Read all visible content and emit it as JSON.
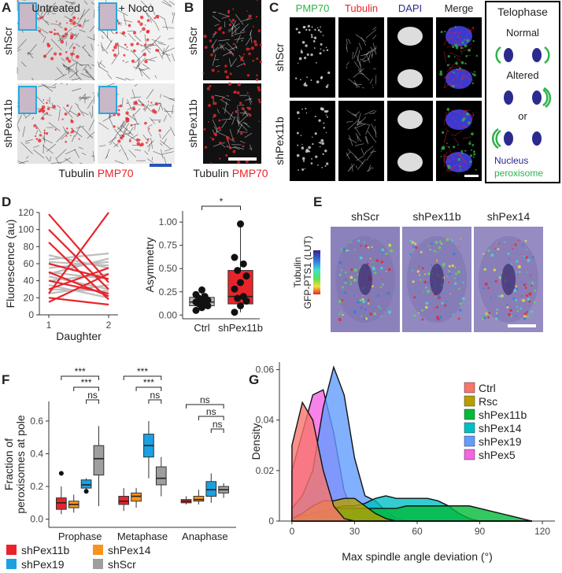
{
  "panels": {
    "A": {
      "letter": "A",
      "columns": [
        "Untreated",
        "+ Noco"
      ],
      "rows": [
        "shScr",
        "shPex11b"
      ],
      "caption": [
        "Tubulin",
        "PMP70"
      ]
    },
    "B": {
      "letter": "B",
      "rows": [
        "shScr",
        "shPex11b"
      ],
      "caption": [
        "Tubulin",
        "PMP70"
      ]
    },
    "C": {
      "letter": "C",
      "columns": [
        "PMP70",
        "Tubulin",
        "DAPI",
        "Merge"
      ],
      "rows": [
        "shScr",
        "shPex11b"
      ]
    },
    "telophase": {
      "title": "Telophase",
      "labels": [
        "Normal",
        "Altered",
        "or"
      ],
      "legend": [
        "Nucleus",
        "peroxisome"
      ]
    },
    "D": {
      "letter": "D"
    },
    "E": {
      "letter": "E",
      "columns": [
        "shScr",
        "shPex11b",
        "shPex14"
      ],
      "side_label": [
        "Tubulin",
        "GFP-PTS1 (LUT)"
      ]
    },
    "F": {
      "letter": "F"
    },
    "G": {
      "letter": "G"
    }
  },
  "chart_data": [
    {
      "type": "line",
      "ylabel": "Fluorescence (au)",
      "xlabel": "Daughter",
      "categories": [
        "1",
        "2"
      ],
      "ylim": [
        0,
        120
      ],
      "yticks": [
        0,
        20,
        40,
        60,
        80,
        100,
        120
      ],
      "series": [
        {
          "color": "#bdbdbd",
          "values": [
            70,
            55
          ]
        },
        {
          "color": "#bdbdbd",
          "values": [
            65,
            72
          ]
        },
        {
          "color": "#bdbdbd",
          "values": [
            55,
            62
          ]
        },
        {
          "color": "#bdbdbd",
          "values": [
            50,
            42
          ]
        },
        {
          "color": "#bdbdbd",
          "values": [
            45,
            30
          ]
        },
        {
          "color": "#bdbdbd",
          "values": [
            40,
            48
          ]
        },
        {
          "color": "#bdbdbd",
          "values": [
            35,
            20
          ]
        },
        {
          "color": "#bdbdbd",
          "values": [
            30,
            28
          ]
        },
        {
          "color": "#bdbdbd",
          "values": [
            62,
            58
          ]
        },
        {
          "color": "#bdbdbd",
          "values": [
            48,
            66
          ]
        },
        {
          "color": "#bdbdbd",
          "values": [
            25,
            35
          ]
        },
        {
          "color": "#e8242b",
          "values": [
            118,
            38
          ]
        },
        {
          "color": "#e8242b",
          "values": [
            25,
            120
          ]
        },
        {
          "color": "#e8242b",
          "values": [
            100,
            30
          ]
        },
        {
          "color": "#e8242b",
          "values": [
            85,
            18
          ]
        },
        {
          "color": "#e8242b",
          "values": [
            60,
            42
          ]
        },
        {
          "color": "#e8242b",
          "values": [
            15,
            48
          ]
        },
        {
          "color": "#e8242b",
          "values": [
            40,
            25
          ]
        },
        {
          "color": "#e8242b",
          "values": [
            20,
            12
          ]
        },
        {
          "color": "#e8242b",
          "values": [
            30,
            55
          ]
        },
        {
          "color": "#e8242b",
          "values": [
            50,
            22
          ]
        }
      ]
    },
    {
      "type": "box",
      "ylabel": "Asymmetry",
      "categories": [
        "Ctrl",
        "shPex11b"
      ],
      "ylim": [
        -0.04,
        1.12
      ],
      "yticks": [
        {
          "value": 0,
          "label": "0.00"
        },
        {
          "value": 0.25,
          "label": "0.25"
        },
        {
          "value": 0.5,
          "label": "0.50"
        },
        {
          "value": 0.75,
          "label": "0.75"
        },
        {
          "value": 1,
          "label": "1.00"
        }
      ],
      "annotations": [
        "*"
      ],
      "series": [
        {
          "colors": [
            "#bdbdbd",
            "#e8242b"
          ],
          "low": [
            0.05,
            0.03
          ],
          "q1": [
            0.1,
            0.12
          ],
          "median": [
            0.14,
            0.2
          ],
          "q3": [
            0.19,
            0.48
          ],
          "high": [
            0.27,
            0.98
          ],
          "points": [
            [
              0.05,
              0.08,
              0.1,
              0.12,
              0.13,
              0.14,
              0.15,
              0.16,
              0.18,
              0.2,
              0.22,
              0.27
            ],
            [
              0.03,
              0.1,
              0.15,
              0.18,
              0.2,
              0.28,
              0.35,
              0.42,
              0.48,
              0.55,
              0.62,
              0.98
            ]
          ]
        }
      ]
    },
    {
      "type": "box",
      "ylabel": [
        "Fraction of",
        "peroxisomes at pole"
      ],
      "categories": [
        "Prophase",
        "Metaphase",
        "Anaphase"
      ],
      "ylim": [
        -0.05,
        0.72
      ],
      "yticks": [
        {
          "value": 0,
          "label": "0.0"
        },
        0.2,
        0.4,
        0.6
      ],
      "annotations": [
        "***",
        "***",
        "ns",
        "***",
        "***",
        "ns",
        "ns",
        "ns",
        "ns"
      ],
      "legend": "bottom",
      "series": [
        {
          "name": "shPex11b",
          "color": "#e8242b",
          "low": [
            0.03,
            0.05,
            0.09
          ],
          "q1": [
            0.06,
            0.09,
            0.1
          ],
          "median": [
            0.1,
            0.11,
            0.11
          ],
          "q3": [
            0.13,
            0.14,
            0.12
          ],
          "high": [
            0.2,
            0.19,
            0.14
          ],
          "outliers": [
            [
              0.28
            ],
            [],
            []
          ]
        },
        {
          "name": "shPex14",
          "color": "#f7941d",
          "low": [
            0.04,
            0.07,
            0.09
          ],
          "q1": [
            0.07,
            0.11,
            0.11
          ],
          "median": [
            0.09,
            0.14,
            0.12
          ],
          "q3": [
            0.11,
            0.16,
            0.14
          ],
          "high": [
            0.15,
            0.19,
            0.18
          ],
          "outliers": [
            [],
            [],
            []
          ]
        },
        {
          "name": "shPex19",
          "color": "#1ba1e2",
          "low": [
            0.18,
            0.25,
            0.1
          ],
          "q1": [
            0.19,
            0.38,
            0.14
          ],
          "median": [
            0.21,
            0.45,
            0.18
          ],
          "q3": [
            0.24,
            0.52,
            0.23
          ],
          "high": [
            0.25,
            0.6,
            0.28
          ],
          "outliers": [
            [
              0.17
            ],
            [],
            []
          ]
        },
        {
          "name": "shScr",
          "color": "#9e9e9e",
          "low": [
            0.08,
            0.14,
            0.13
          ],
          "q1": [
            0.27,
            0.21,
            0.16
          ],
          "median": [
            0.37,
            0.25,
            0.18
          ],
          "q3": [
            0.45,
            0.32,
            0.2
          ],
          "high": [
            0.57,
            0.38,
            0.22
          ],
          "outliers": [
            [],
            [],
            []
          ]
        }
      ]
    },
    {
      "type": "area",
      "ylabel": "Density",
      "xlabel": "Max spindle angle deviation (°)",
      "xlim": [
        -6,
        126
      ],
      "xticks": [
        0,
        30,
        60,
        90,
        120
      ],
      "ylim": [
        0,
        0.063
      ],
      "yticks": [
        0,
        0.02,
        0.04,
        0.06
      ],
      "legend": "right",
      "x": [
        0,
        5,
        10,
        15,
        20,
        25,
        30,
        35,
        40,
        45,
        50,
        55,
        60,
        65,
        70,
        75,
        80,
        85,
        90,
        95,
        100,
        105,
        110,
        115
      ],
      "series": [
        {
          "name": "Ctrl",
          "color": "#f8766d",
          "values": [
            0.03,
            0.047,
            0.04,
            0.02,
            0.006,
            0.001,
            0,
            0,
            0,
            0,
            0,
            0,
            0,
            0,
            0,
            0,
            0,
            0,
            0,
            0,
            0,
            0,
            0,
            0
          ]
        },
        {
          "name": "Rsc",
          "color": "#b79f00",
          "values": [
            0.001,
            0.003,
            0.006,
            0.008,
            0.008,
            0.009,
            0.009,
            0.006,
            0.003,
            0.001,
            0,
            0,
            0,
            0,
            0,
            0,
            0,
            0,
            0,
            0,
            0,
            0,
            0,
            0
          ]
        },
        {
          "name": "shPex11b",
          "color": "#00ba38",
          "values": [
            0.001,
            0.002,
            0.003,
            0.004,
            0.005,
            0.005,
            0.005,
            0.005,
            0.005,
            0.005,
            0.005,
            0.006,
            0.006,
            0.006,
            0.006,
            0.006,
            0.006,
            0.006,
            0.005,
            0.004,
            0.003,
            0.002,
            0.001,
            0
          ]
        },
        {
          "name": "shPex14",
          "color": "#00bfc4",
          "values": [
            0.001,
            0.002,
            0.003,
            0.004,
            0.005,
            0.006,
            0.006,
            0.007,
            0.009,
            0.01,
            0.009,
            0.009,
            0.009,
            0.009,
            0.008,
            0.006,
            0.003,
            0.001,
            0,
            0,
            0,
            0,
            0,
            0
          ]
        },
        {
          "name": "shPex19",
          "color": "#619cff",
          "values": [
            0.005,
            0.01,
            0.02,
            0.045,
            0.061,
            0.05,
            0.025,
            0.01,
            0.008,
            0.004,
            0.001,
            0,
            0,
            0,
            0,
            0,
            0,
            0,
            0,
            0,
            0,
            0,
            0,
            0
          ]
        },
        {
          "name": "shPex5",
          "color": "#f564e3",
          "values": [
            0.02,
            0.035,
            0.05,
            0.052,
            0.035,
            0.012,
            0.002,
            0,
            0,
            0,
            0,
            0,
            0,
            0,
            0,
            0,
            0,
            0,
            0,
            0,
            0,
            0,
            0,
            0
          ]
        }
      ]
    }
  ]
}
